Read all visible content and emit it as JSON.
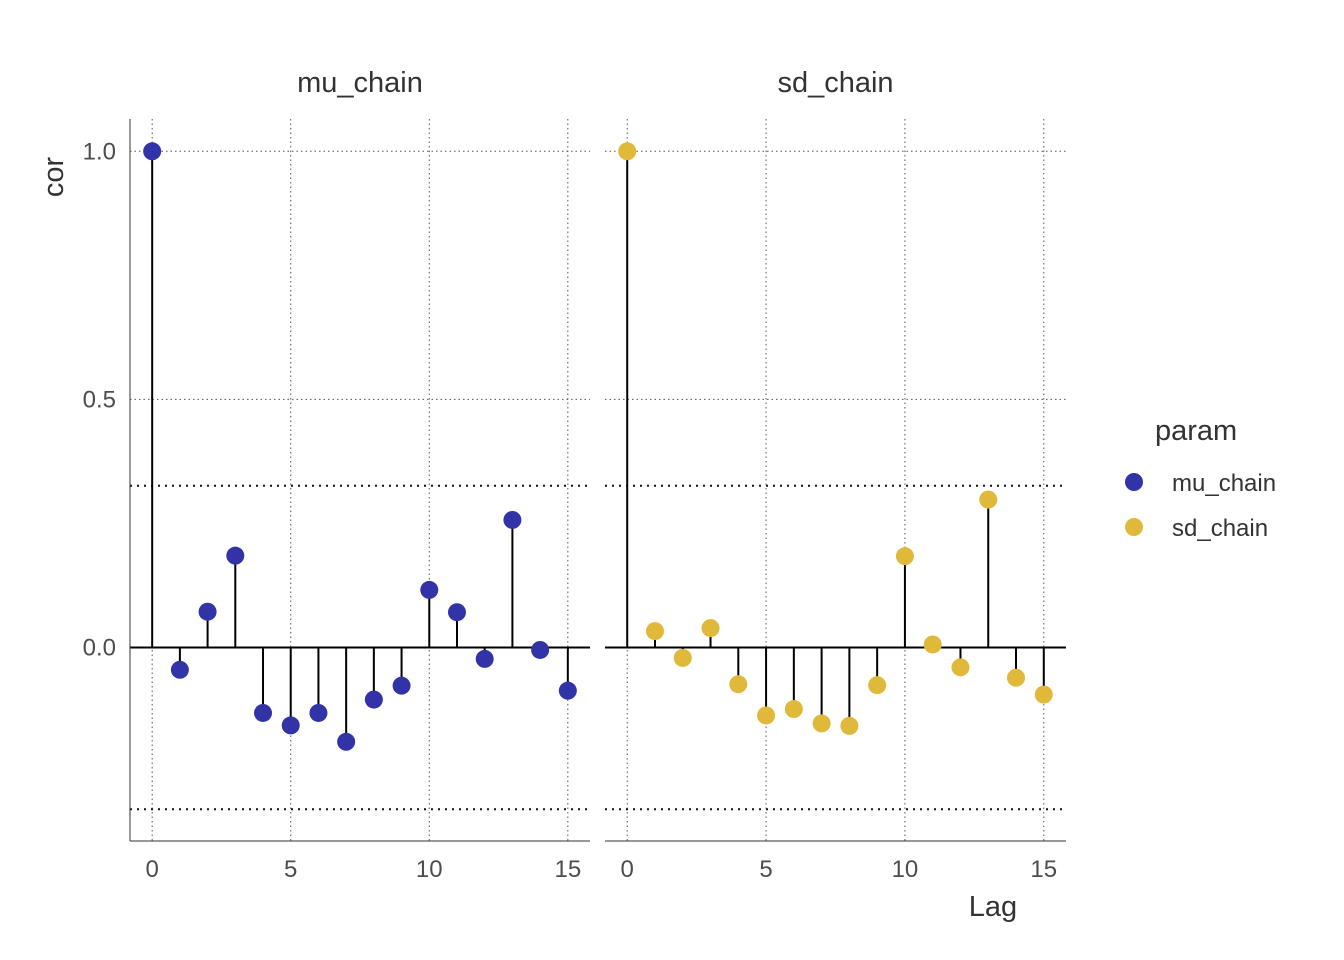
{
  "chart_data": {
    "type": "scatter",
    "style": "lollipop-acf",
    "xlabel": "Lag",
    "ylabel": "cor",
    "xlim": [
      -0.8,
      15.8
    ],
    "ylim": [
      -0.39,
      1.065
    ],
    "x_ticks": [
      0,
      5,
      10,
      15
    ],
    "y_ticks": [
      0.0,
      0.5,
      1.0
    ],
    "y_tick_labels": [
      "0.0",
      "0.5",
      "1.0"
    ],
    "grid": "dotted major gridlines",
    "confidence_bounds": [
      0.326,
      -0.326
    ],
    "legend": {
      "title": "param",
      "placement": "right",
      "entries": [
        {
          "label": "mu_chain",
          "color": "#3333a8"
        },
        {
          "label": "sd_chain",
          "color": "#e0b93a"
        }
      ]
    },
    "panels": [
      {
        "name": "mu_chain",
        "color": "#3333a8",
        "lags": [
          0,
          1,
          2,
          3,
          4,
          5,
          6,
          7,
          8,
          9,
          10,
          11,
          12,
          13,
          14,
          15
        ],
        "values": [
          1.0,
          -0.045,
          0.072,
          0.185,
          -0.132,
          -0.157,
          -0.132,
          -0.19,
          -0.105,
          -0.077,
          0.116,
          0.071,
          -0.023,
          0.257,
          -0.005,
          -0.087
        ]
      },
      {
        "name": "sd_chain",
        "color": "#e0b93a",
        "lags": [
          0,
          1,
          2,
          3,
          4,
          5,
          6,
          7,
          8,
          9,
          10,
          11,
          12,
          13,
          14,
          15
        ],
        "values": [
          1.0,
          0.033,
          -0.021,
          0.039,
          -0.074,
          -0.137,
          -0.124,
          -0.153,
          -0.158,
          -0.076,
          0.184,
          0.006,
          -0.04,
          0.298,
          -0.061,
          -0.095
        ]
      }
    ]
  }
}
